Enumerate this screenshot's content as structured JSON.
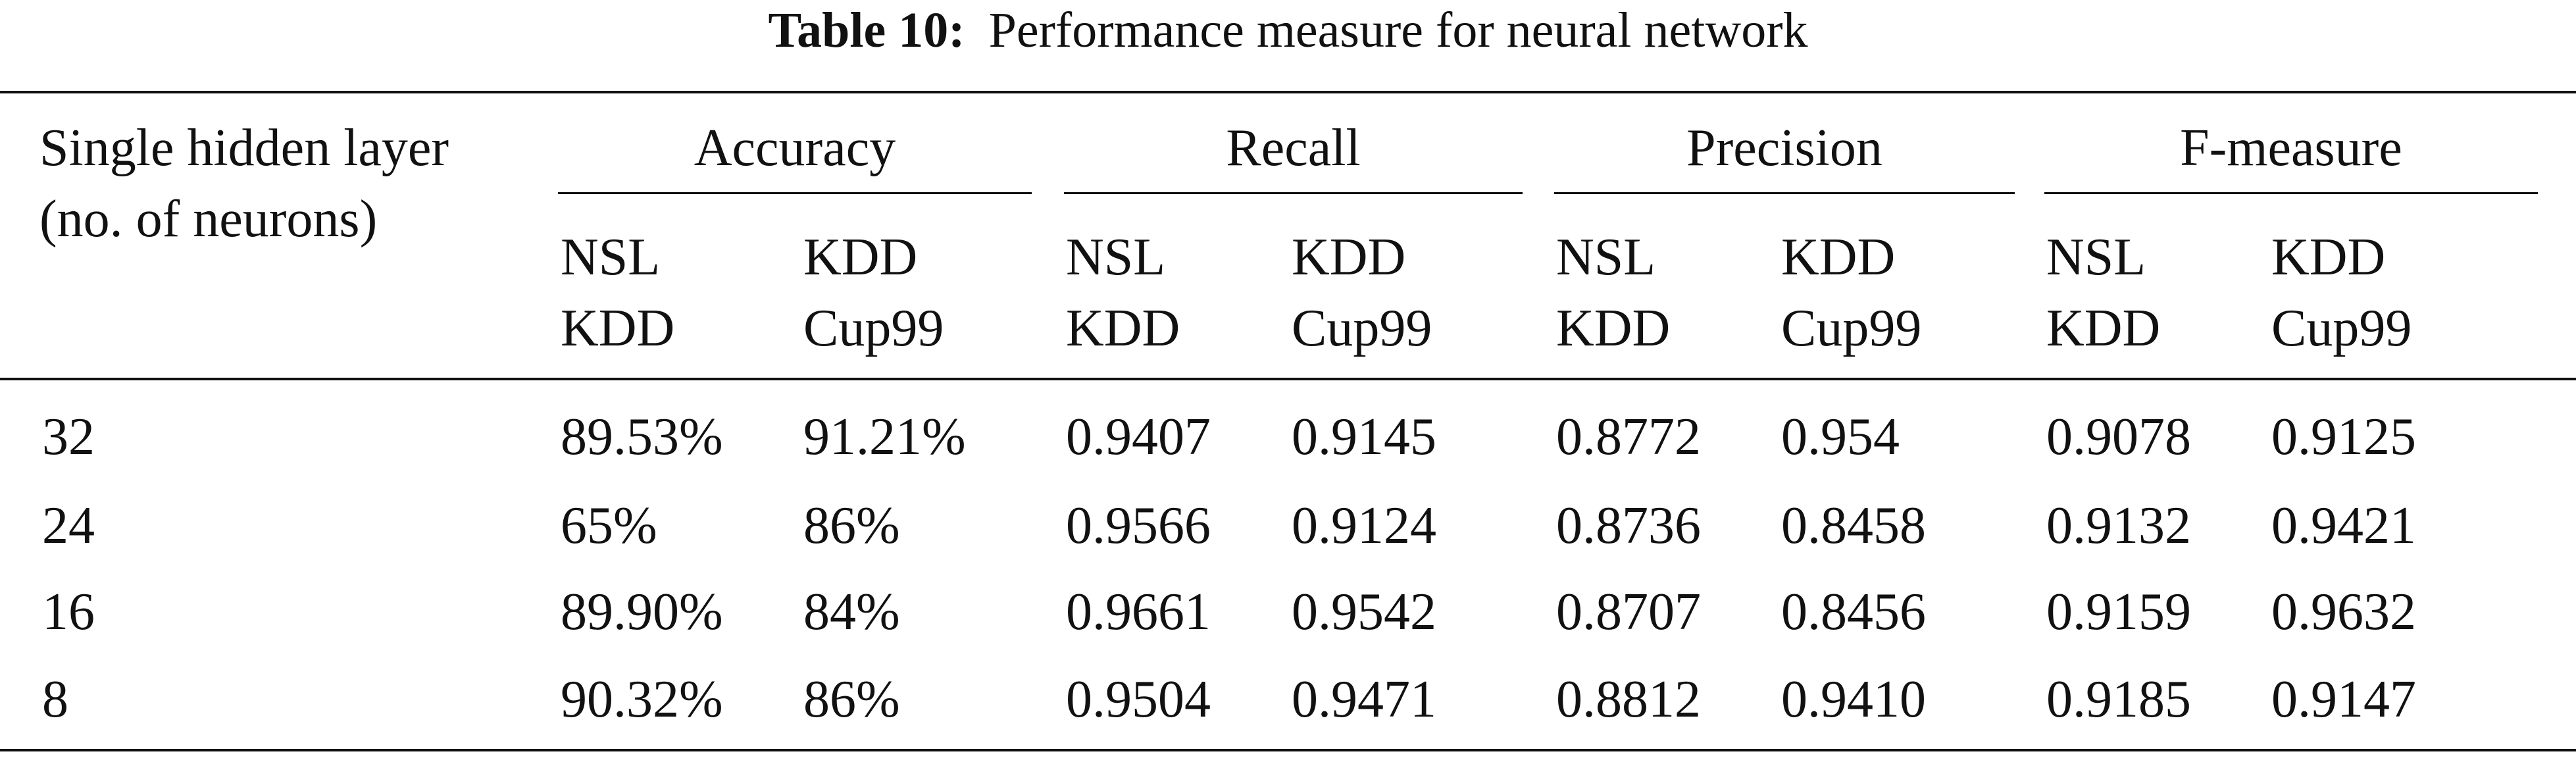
{
  "caption": {
    "label": "Table 10:",
    "text": "Performance measure for neural network"
  },
  "header": {
    "row_label_line1": "Single hidden layer",
    "row_label_line2": "(no. of neurons)",
    "groups": [
      "Accuracy",
      "Recall",
      "Precision",
      "F-measure"
    ],
    "subcols": [
      {
        "line1": "NSL",
        "line2": "KDD"
      },
      {
        "line1": "KDD",
        "line2": "Cup99"
      }
    ]
  },
  "rows": [
    {
      "neurons": "32",
      "values": [
        "89.53%",
        "91.21%",
        "0.9407",
        "0.9145",
        "0.8772",
        "0.954",
        "0.9078",
        "0.9125"
      ]
    },
    {
      "neurons": "24",
      "values": [
        "65%",
        "86%",
        "0.9566",
        "0.9124",
        "0.8736",
        "0.8458",
        "0.9132",
        "0.9421"
      ]
    },
    {
      "neurons": "16",
      "values": [
        "89.90%",
        "84%",
        "0.9661",
        "0.9542",
        "0.8707",
        "0.8456",
        "0.9159",
        "0.9632"
      ]
    },
    {
      "neurons": "8",
      "values": [
        "90.32%",
        "86%",
        "0.9504",
        "0.9471",
        "0.8812",
        "0.9410",
        "0.9185",
        "0.9147"
      ]
    }
  ]
}
